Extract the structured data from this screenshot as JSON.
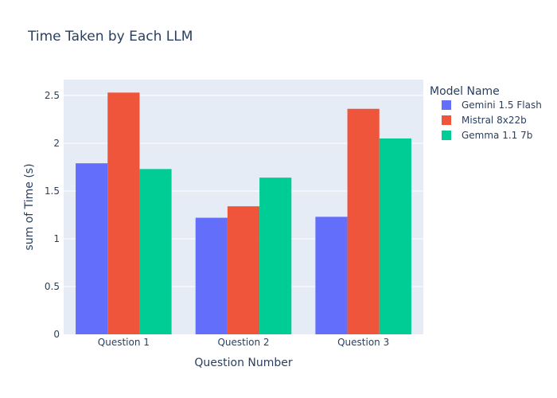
{
  "chart_data": {
    "type": "bar",
    "title": "Time Taken by Each LLM",
    "xlabel": "Question Number",
    "ylabel": "sum of Time (s)",
    "categories": [
      "Question 1",
      "Question 2",
      "Question 3"
    ],
    "series": [
      {
        "name": "Gemini 1.5 Flash",
        "color": "#636efa",
        "values": [
          1.79,
          1.22,
          1.23
        ]
      },
      {
        "name": "Mistral 8x22b",
        "color": "#ef553b",
        "values": [
          2.53,
          1.34,
          2.36
        ]
      },
      {
        "name": "Gemma 1.1 7b",
        "color": "#00cc96",
        "values": [
          1.73,
          1.64,
          2.05
        ]
      }
    ],
    "ylim": [
      0,
      2.666
    ],
    "yticks": [
      0,
      0.5,
      1,
      1.5,
      2,
      2.5
    ],
    "ytick_labels": [
      "0",
      "0.5",
      "1",
      "1.5",
      "2",
      "2.5"
    ],
    "legend_title": "Model Name",
    "legend_position": "right",
    "grid": true,
    "plot_bg": "#e5ecf6"
  }
}
